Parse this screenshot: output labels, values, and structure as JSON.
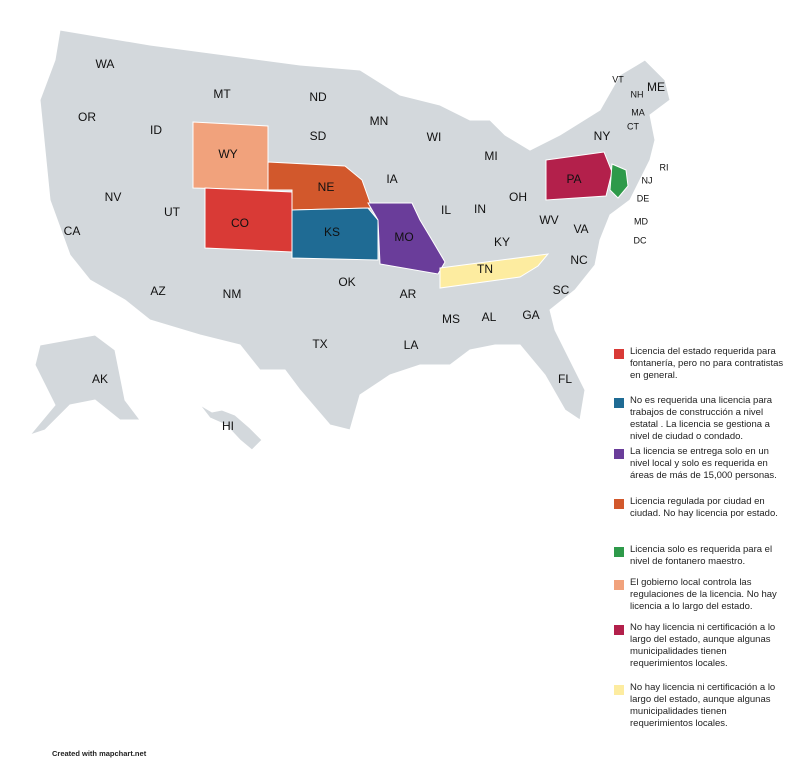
{
  "map": {
    "states": [
      {
        "label": "WA"
      },
      {
        "label": "OR"
      },
      {
        "label": "CA"
      },
      {
        "label": "NV"
      },
      {
        "label": "ID"
      },
      {
        "label": "MT"
      },
      {
        "label": "WY",
        "color": "#f1a27c"
      },
      {
        "label": "UT"
      },
      {
        "label": "AZ"
      },
      {
        "label": "CO",
        "color": "#d93a36"
      },
      {
        "label": "NM"
      },
      {
        "label": "ND"
      },
      {
        "label": "SD"
      },
      {
        "label": "NE",
        "color": "#d2582c"
      },
      {
        "label": "KS",
        "color": "#1f6b94"
      },
      {
        "label": "OK"
      },
      {
        "label": "TX"
      },
      {
        "label": "MN"
      },
      {
        "label": "IA"
      },
      {
        "label": "MO",
        "color": "#6a3d9a"
      },
      {
        "label": "AR"
      },
      {
        "label": "LA"
      },
      {
        "label": "WI"
      },
      {
        "label": "IL"
      },
      {
        "label": "MS"
      },
      {
        "label": "MI"
      },
      {
        "label": "IN"
      },
      {
        "label": "KY"
      },
      {
        "label": "TN",
        "color": "#fdeca0"
      },
      {
        "label": "AL"
      },
      {
        "label": "GA"
      },
      {
        "label": "FL"
      },
      {
        "label": "OH"
      },
      {
        "label": "WV"
      },
      {
        "label": "VA"
      },
      {
        "label": "NC"
      },
      {
        "label": "SC"
      },
      {
        "label": "PA",
        "color": "#b3204b"
      },
      {
        "label": "NY"
      },
      {
        "label": "VT"
      },
      {
        "label": "NH"
      },
      {
        "label": "ME"
      },
      {
        "label": "MA"
      },
      {
        "label": "CT"
      },
      {
        "label": "RI"
      },
      {
        "label": "NJ",
        "color": "#2e9a4a"
      },
      {
        "label": "DE"
      },
      {
        "label": "MD"
      },
      {
        "label": "DC"
      },
      {
        "label": "AK"
      },
      {
        "label": "HI"
      }
    ],
    "legend": [
      {
        "text": "Licencia del estado requerida para fontanería, pero no para contratistas en general.",
        "color": "#d93a36"
      },
      {
        "text": "No es requerida una licencia para trabajos de construcción a nivel estatal . La licencia se gestiona a nivel de ciudad o condado.",
        "color": "#1f6b94"
      },
      {
        "text": "La licencia se entrega solo en un nivel local y solo es requerida en áreas de más de 15,000 personas.",
        "color": "#6a3d9a"
      },
      {
        "text": "Licencia regulada por ciudad en ciudad. No hay licencia por estado.",
        "color": "#d2582c"
      },
      {
        "text": "Licencia solo es requerida para el nivel de fontanero maestro.",
        "color": "#2e9a4a"
      },
      {
        "text": "El gobierno local controla las regulaciones de la licencia. No hay licencia a lo largo del estado.",
        "color": "#f1a27c"
      },
      {
        "text": "No hay licencia ni certificación a lo largo del estado, aunque algunas municipalidades tienen requerimientos locales.",
        "color": "#b3204b"
      },
      {
        "text": "No hay licencia ni certificación a lo largo del estado, aunque algunas municipalidades tienen requerimientos locales.",
        "color": "#fdeca0"
      }
    ],
    "credit": "Created with mapchart.net"
  }
}
